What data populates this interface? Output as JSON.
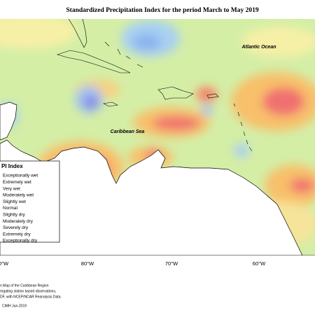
{
  "title": "Standardized Precipitation Index for the period March to May 2019",
  "ocean_labels": [
    "Atlantic Ocean",
    "Caribbean Sea"
  ],
  "legend": {
    "title": "PI Index",
    "items": [
      "Exceptionally wet",
      "Extremely wet",
      "Very wet",
      "Moderately wet",
      "Slightly wet",
      "Normal",
      "Slightly dry",
      "Moderately dry",
      "Severely dry",
      "Extremely dry",
      "Exceptionally dry"
    ]
  },
  "longitude_labels": [
    "0°W",
    "80°W",
    "70°W",
    "60°W"
  ],
  "footnote": [
    "n Map of the Caribbean Region",
    "regating station based observations,",
    "DF, with NCEP/NCAR Reanalysis Data.",
    "CIMH Jun-2019"
  ]
}
